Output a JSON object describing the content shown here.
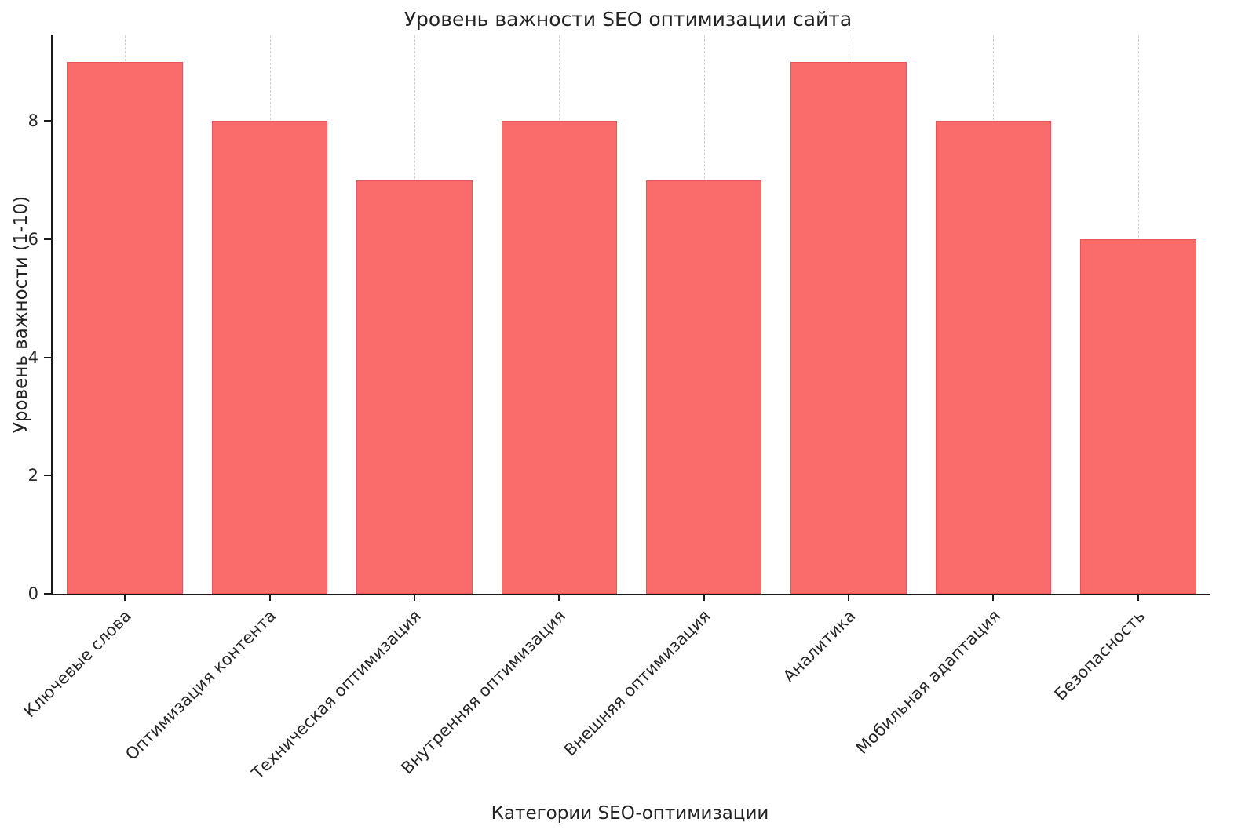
{
  "chart_data": {
    "type": "bar",
    "title": "Уровень важности SEO оптимизации сайта",
    "xlabel": "Категории SEO-оптимизации",
    "ylabel": "Уровень важности (1-10)",
    "categories": [
      "Ключевые слова",
      "Оптимизация контента",
      "Техническая оптимизация",
      "Внутренняя оптимизация",
      "Внешняя оптимизация",
      "Аналитика",
      "Мобильная адаптация",
      "Безопасность"
    ],
    "values": [
      9,
      8,
      7,
      8,
      7,
      9,
      8,
      6
    ],
    "ylim": [
      0,
      9.45
    ],
    "yticks": [
      0,
      2,
      4,
      6,
      8
    ],
    "bar_color": "#FA6B6B",
    "grid": "vertical-dashed",
    "legend": "none",
    "bar_width_fraction": 0.8
  }
}
